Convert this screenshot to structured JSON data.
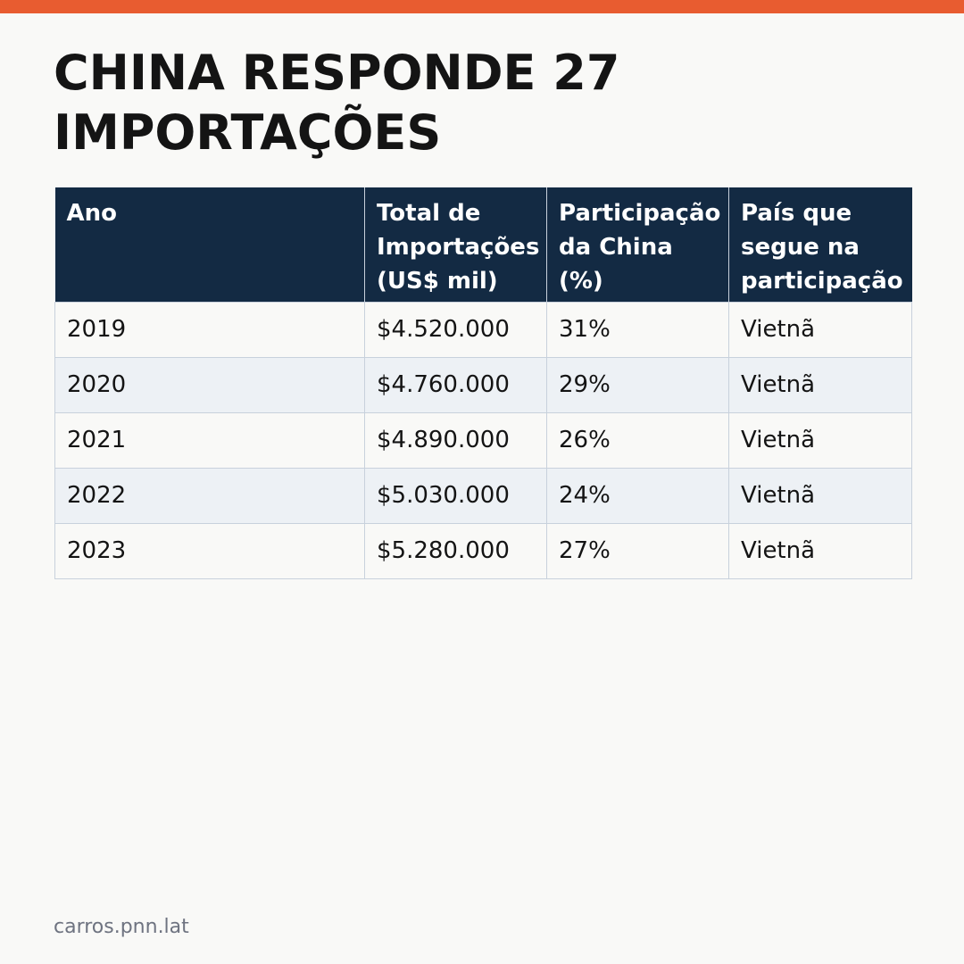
{
  "colors": {
    "accent_bar": "#e85c30",
    "header_background": "#132a43",
    "header_text": "#ffffff",
    "alt_row_background": "#edf1f5",
    "page_background": "#f9f9f7"
  },
  "title": {
    "line1": "CHINA RESPONDE 27",
    "line2": "IMPORTAÇÕES"
  },
  "table": {
    "headers": [
      {
        "lines": [
          "Ano"
        ]
      },
      {
        "lines": [
          "Total de",
          "Importações",
          "(US$ mil)"
        ]
      },
      {
        "lines": [
          "Participação",
          "da China",
          "(%)"
        ]
      },
      {
        "lines": [
          "País que",
          "segue na",
          "participação"
        ]
      }
    ],
    "rows": [
      {
        "ano": "2019",
        "total": "$4.520.000",
        "participacao": "31%",
        "pais": "Vietnã"
      },
      {
        "ano": "2020",
        "total": "$4.760.000",
        "participacao": "29%",
        "pais": "Vietnã"
      },
      {
        "ano": "2021",
        "total": "$4.890.000",
        "participacao": "26%",
        "pais": "Vietnã"
      },
      {
        "ano": "2022",
        "total": "$5.030.000",
        "participacao": "24%",
        "pais": "Vietnã"
      },
      {
        "ano": "2023",
        "total": "$5.280.000",
        "participacao": "27%",
        "pais": "Vietnã"
      }
    ]
  },
  "footer": {
    "source": "carros.pnn.lat"
  }
}
